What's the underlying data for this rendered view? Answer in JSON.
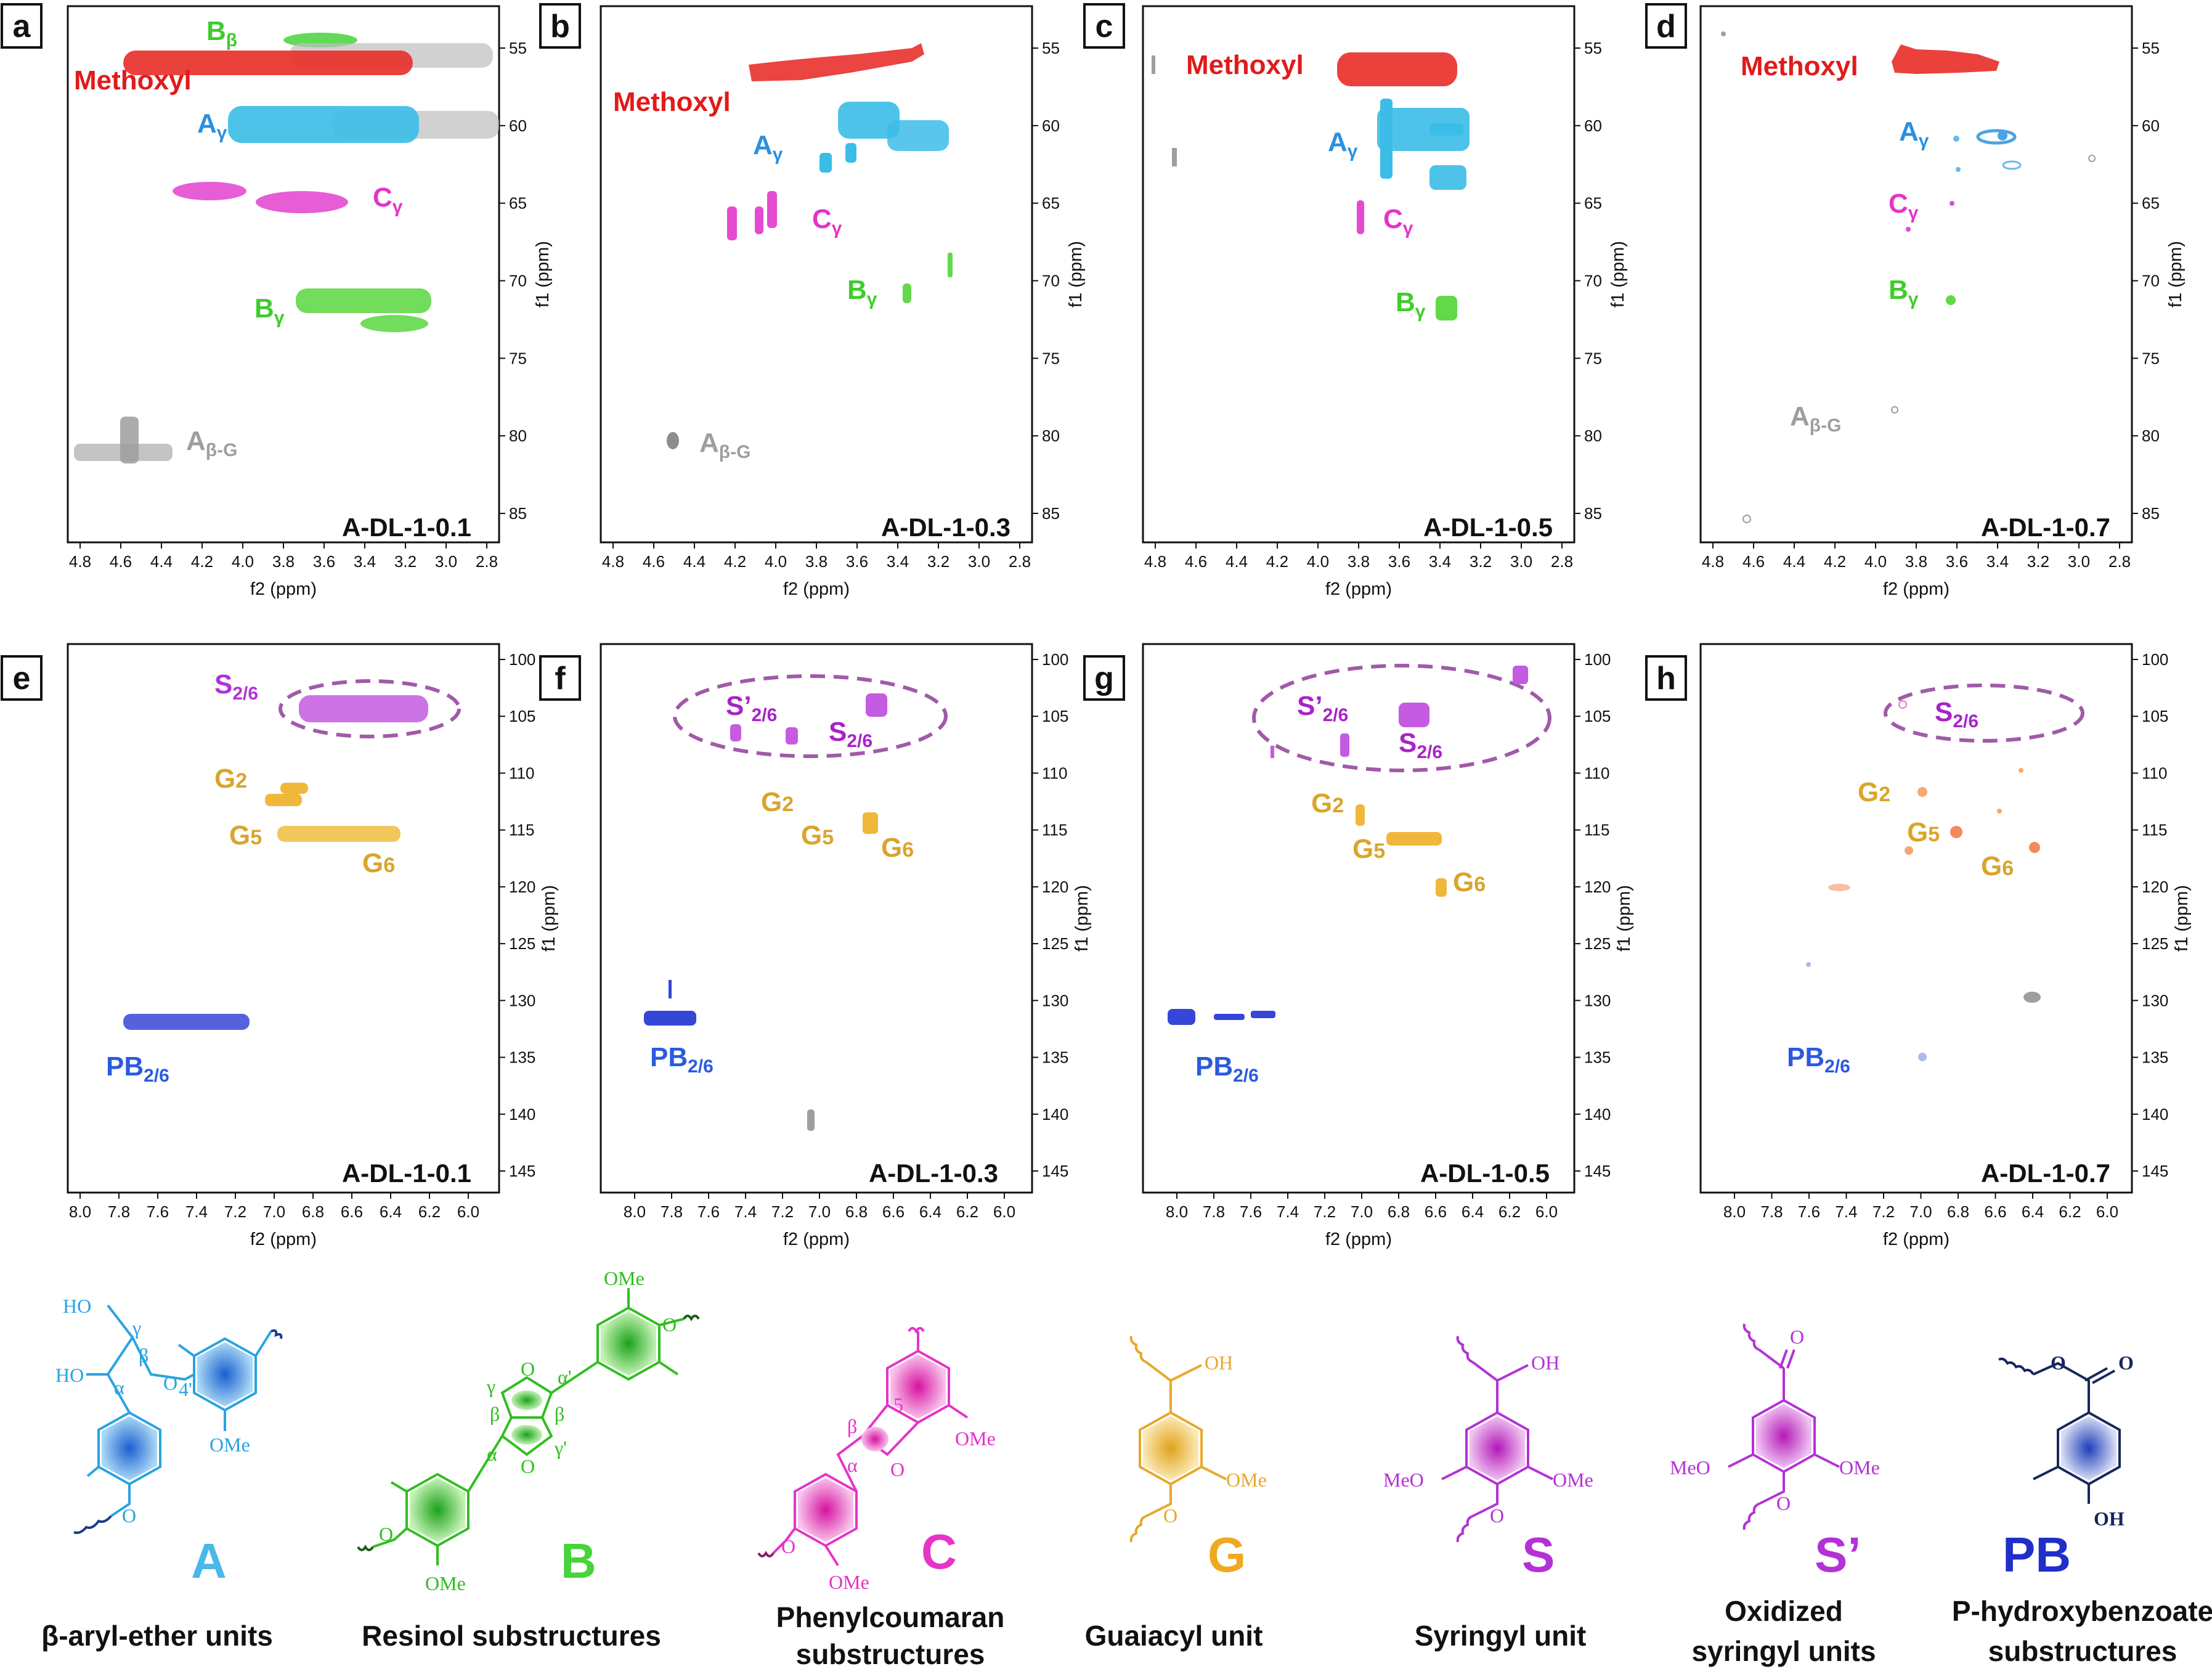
{
  "colors": {
    "methoxyl": "#e01b1b",
    "A": "#2aa3e0",
    "B": "#3fcc2c",
    "C": "#e633c8",
    "G": "#e8b12a",
    "S": "#b431d6",
    "PB": "#2a40c8",
    "grey": "#9e9e9e"
  },
  "top_row": {
    "axis_y_label": "f1 (ppm)",
    "axis_x_label": "f2 (ppm)",
    "x_ticks": [
      "4.8",
      "4.6",
      "4.4",
      "4.2",
      "4.0",
      "3.8",
      "3.6",
      "3.4",
      "3.2",
      "3.0",
      "2.8"
    ],
    "y_ticks": [
      "55",
      "60",
      "65",
      "70",
      "75",
      "80",
      "85"
    ],
    "panels": [
      {
        "letter": "a",
        "sample": "A-DL-1-0.1"
      },
      {
        "letter": "b",
        "sample": "A-DL-1-0.3"
      },
      {
        "letter": "c",
        "sample": "A-DL-1-0.5"
      },
      {
        "letter": "d",
        "sample": "A-DL-1-0.7"
      }
    ]
  },
  "bottom_row": {
    "axis_y_label": "f1 (ppm)",
    "axis_x_label": "f2 (ppm)",
    "x_ticks": [
      "8.0",
      "7.8",
      "7.6",
      "7.4",
      "7.2",
      "7.0",
      "6.8",
      "6.6",
      "6.4",
      "6.2",
      "6.0"
    ],
    "y_ticks": [
      "100",
      "105",
      "110",
      "115",
      "120",
      "125",
      "130",
      "135",
      "140",
      "145"
    ],
    "panels": [
      {
        "letter": "e",
        "sample": "A-DL-1-0.1"
      },
      {
        "letter": "f",
        "sample": "A-DL-1-0.3"
      },
      {
        "letter": "g",
        "sample": "A-DL-1-0.5"
      },
      {
        "letter": "h",
        "sample": "A-DL-1-0.7"
      }
    ]
  },
  "peak_labels": {
    "methoxyl": "Methoxyl",
    "a_gamma": {
      "base": "A",
      "sub": "γ"
    },
    "b_beta": {
      "base": "B",
      "sub": "β"
    },
    "b_gamma": {
      "base": "B",
      "sub": "γ"
    },
    "c_gamma": {
      "base": "C",
      "sub": "γ"
    },
    "a_beta_g": {
      "base": "A",
      "sub": "β-G"
    },
    "s26": {
      "base": "S",
      "sub": "2/6"
    },
    "s_prime26": {
      "base": "S’",
      "sub": "2/6"
    },
    "g2": {
      "base": "G",
      "sub": "2"
    },
    "g5": {
      "base": "G",
      "sub": "5"
    },
    "g6": {
      "base": "G",
      "sub": "6"
    },
    "pb26": {
      "base": "PB",
      "sub": "2/6"
    }
  },
  "structures": [
    {
      "letter": "A",
      "caption": [
        "β-aryl-ether units"
      ]
    },
    {
      "letter": "B",
      "caption": [
        "Resinol substructures"
      ]
    },
    {
      "letter": "C",
      "caption": [
        "Phenylcoumaran",
        "substructures"
      ]
    },
    {
      "letter": "G",
      "caption": [
        "Guaiacyl unit"
      ]
    },
    {
      "letter": "S",
      "caption": [
        "Syringyl unit"
      ]
    },
    {
      "letter": "S’",
      "caption": [
        "Oxidized",
        "syringyl units"
      ]
    },
    {
      "letter": "PB",
      "caption": [
        "P-hydroxybenzoate",
        "substructures"
      ]
    }
  ],
  "chem_text": {
    "oh": "OH",
    "ho": "HO",
    "ome": "OMe",
    "meo": "MeO",
    "o": "O",
    "alpha": "α",
    "beta": "β",
    "gamma": "γ",
    "alpha_p": "α'",
    "gamma_p": "γ'",
    "four_p": "4'",
    "five": "5"
  }
}
